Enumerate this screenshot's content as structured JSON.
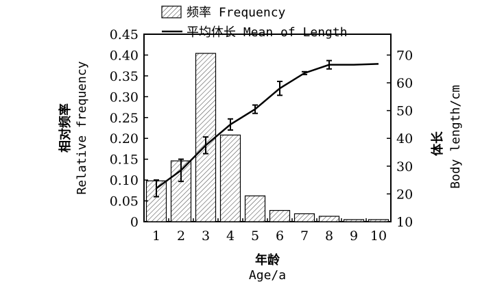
{
  "chart_data": {
    "type": "bar",
    "categories": [
      "1",
      "2",
      "3",
      "4",
      "5",
      "6",
      "7",
      "8",
      "9",
      "10"
    ],
    "series": [
      {
        "name": "频率 Frequency",
        "type": "bar",
        "axis": "left",
        "values": [
          0.098,
          0.146,
          0.404,
          0.208,
          0.062,
          0.027,
          0.019,
          0.013,
          0.005,
          0.005
        ]
      },
      {
        "name": "平均体长 Mean of Length",
        "type": "line",
        "axis": "right",
        "values": [
          22,
          28.5,
          37.5,
          45,
          50.5,
          58,
          63.5,
          66.5,
          66.5,
          66.8
        ],
        "error": [
          3,
          4,
          3,
          2,
          1.5,
          2.5,
          0.5,
          1.5,
          0,
          0
        ]
      }
    ],
    "xlabel": {
      "cn": "年龄",
      "en": "Age/a"
    },
    "ylabel_left": {
      "cn": "相对频率",
      "en": "Relative frequency"
    },
    "ylabel_right": {
      "cn": "体长",
      "en": "Body length/cm"
    },
    "ylim_left": [
      0,
      0.45
    ],
    "ylim_right": [
      10,
      77.5
    ],
    "yticks_left": [
      "0",
      "0.05",
      "0.10",
      "0.15",
      "0.20",
      "0.25",
      "0.30",
      "0.35",
      "0.40",
      "0.45"
    ],
    "yticks_right": [
      "10",
      "20",
      "30",
      "40",
      "50",
      "60",
      "70"
    ],
    "grid": false,
    "legend_position": "top"
  }
}
